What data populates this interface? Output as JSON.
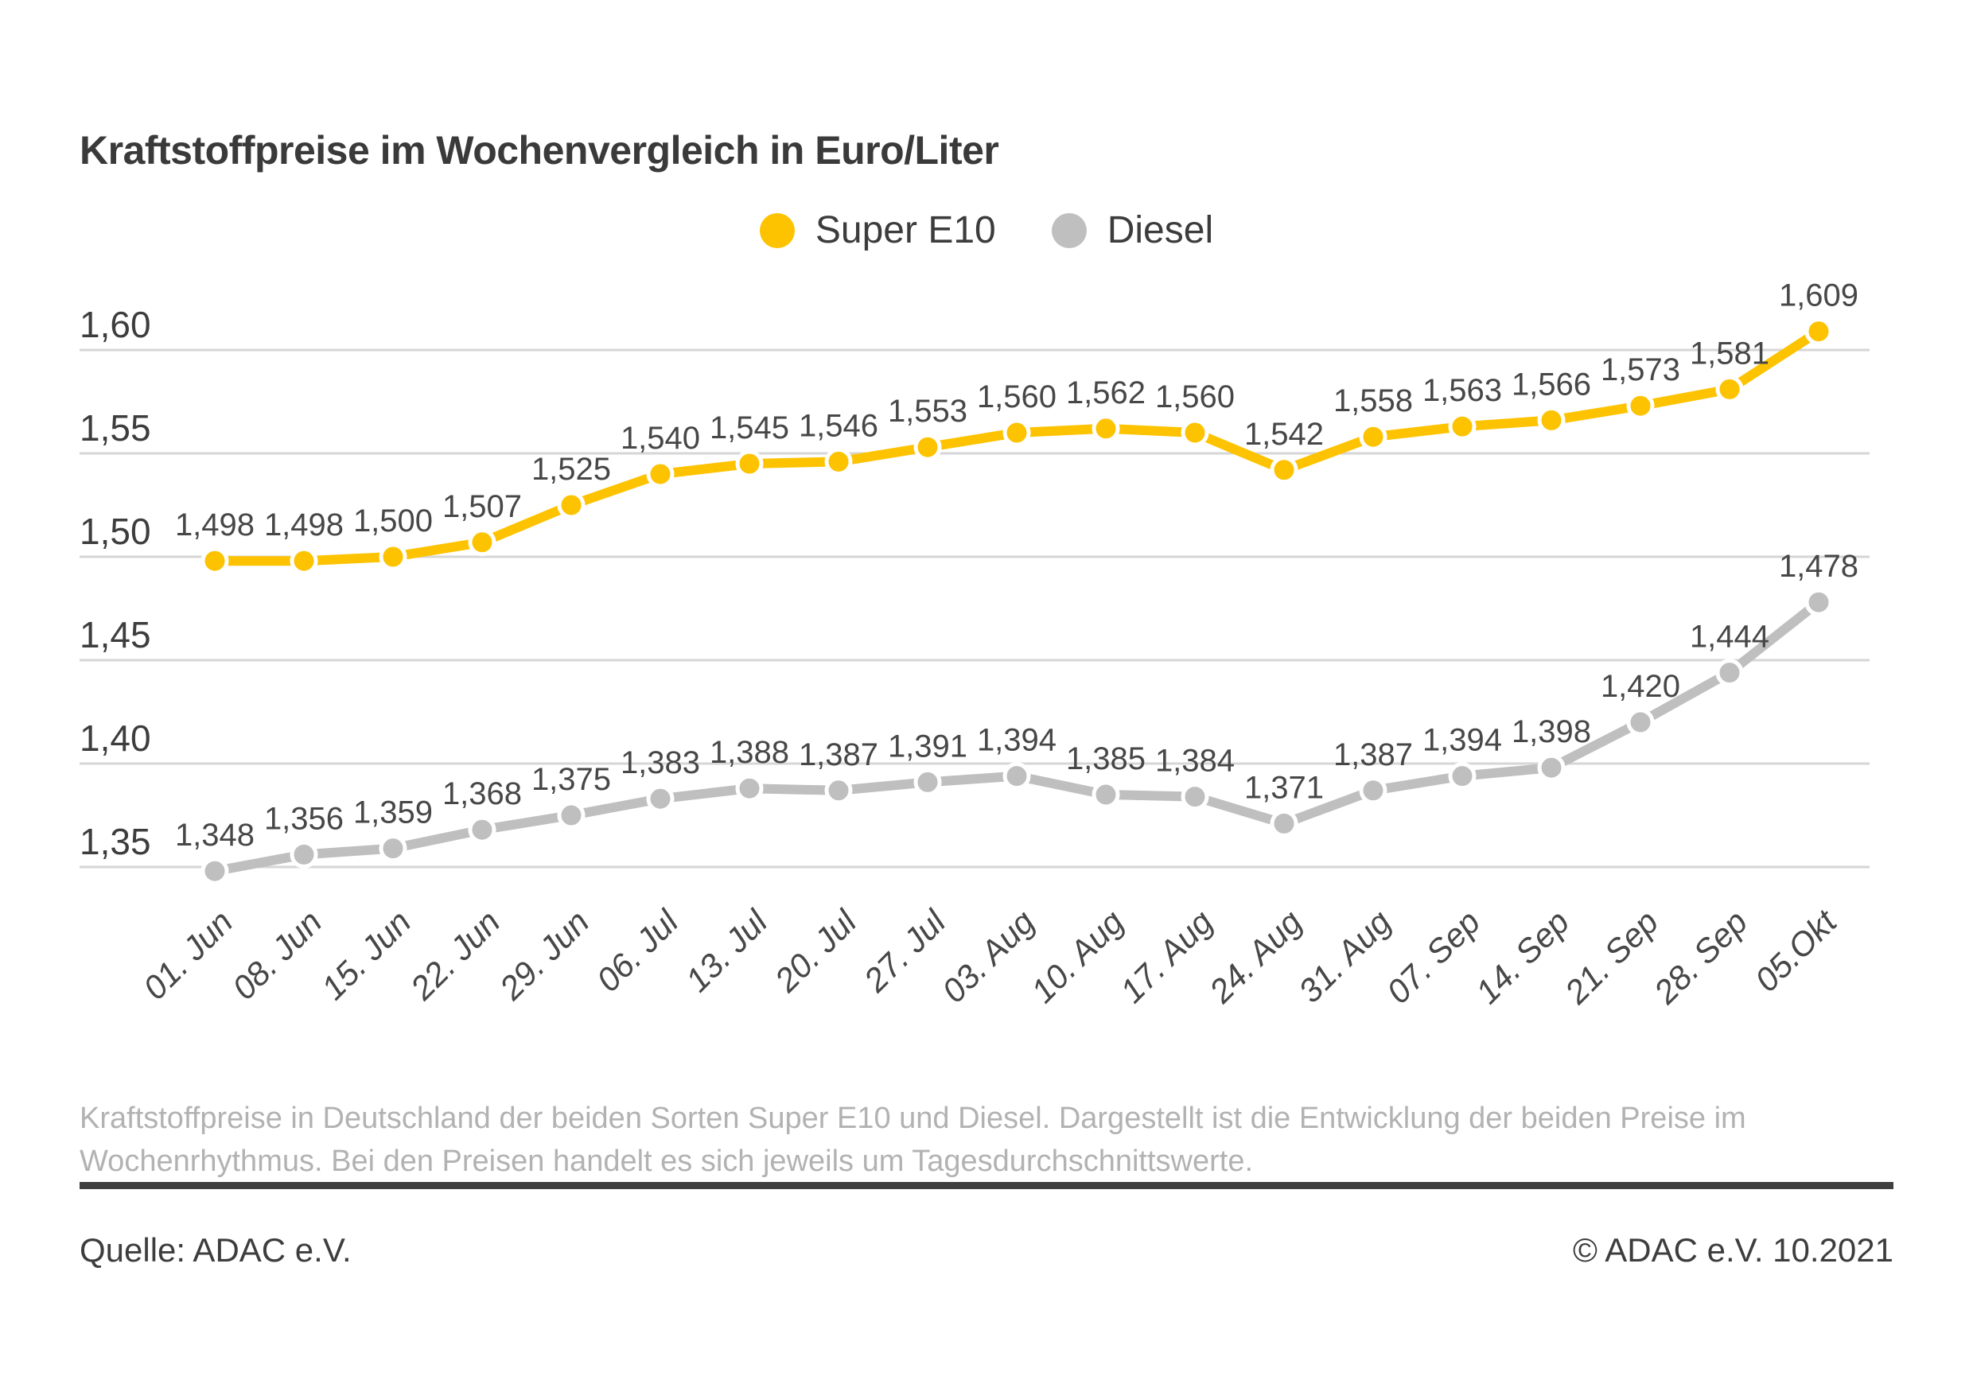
{
  "title": "Kraftstoffpreise im Wochenvergleich in Euro/Liter",
  "legend": [
    {
      "label": "Super E10",
      "color": "#fdc300"
    },
    {
      "label": "Diesel",
      "color": "#bfbfbf"
    }
  ],
  "footnote": {
    "line1": "Kraftstoffpreise in Deutschland der beiden Sorten Super E10 und Diesel. Dargestellt ist die Entwicklung der beiden Preise im",
    "line2": "Wochenrhythmus. Bei den Preisen handelt es sich jeweils um Tagesdurchschnittswerte."
  },
  "source_left": "Quelle: ADAC e.V.",
  "source_right": "© ADAC e.V. 10.2021",
  "colors": {
    "super_e10": "#fdc300",
    "diesel": "#bfbfbf",
    "grid": "#d6d6d6",
    "text_dark": "#3c3c3c",
    "text_label": "#474747",
    "text_footnote": "#b2b2b2"
  },
  "chart_data": {
    "type": "line",
    "title": "Kraftstoffpreise im Wochenvergleich in Euro/Liter",
    "xlabel": "",
    "ylabel": "Euro/Liter",
    "ylim": [
      1.33,
      1.62
    ],
    "grid": true,
    "legend_position": "top-center",
    "decimal_separator": ",",
    "x": [
      "01. Jun",
      "08. Jun",
      "15. Jun",
      "22. Jun",
      "29. Jun",
      "06. Jul",
      "13. Jul",
      "20. Jul",
      "27. Jul",
      "03. Aug",
      "10. Aug",
      "17. Aug",
      "24. Aug",
      "31. Aug",
      "07. Sep",
      "14. Sep",
      "21. Sep",
      "28. Sep",
      "05.Okt"
    ],
    "yticks": [
      {
        "value": 1.6,
        "label": "1,60"
      },
      {
        "value": 1.55,
        "label": "1,55"
      },
      {
        "value": 1.5,
        "label": "1,50"
      },
      {
        "value": 1.45,
        "label": "1,45"
      },
      {
        "value": 1.4,
        "label": "1,40"
      },
      {
        "value": 1.35,
        "label": "1,35"
      }
    ],
    "series": [
      {
        "name": "Super E10",
        "color": "#fdc300",
        "values": [
          1.498,
          1.498,
          1.5,
          1.507,
          1.525,
          1.54,
          1.545,
          1.546,
          1.553,
          1.56,
          1.562,
          1.56,
          1.542,
          1.558,
          1.563,
          1.566,
          1.573,
          1.581,
          1.609
        ]
      },
      {
        "name": "Diesel",
        "color": "#bfbfbf",
        "values": [
          1.348,
          1.356,
          1.359,
          1.368,
          1.375,
          1.383,
          1.388,
          1.387,
          1.391,
          1.394,
          1.385,
          1.384,
          1.371,
          1.387,
          1.394,
          1.398,
          1.42,
          1.444,
          1.478
        ]
      }
    ]
  }
}
